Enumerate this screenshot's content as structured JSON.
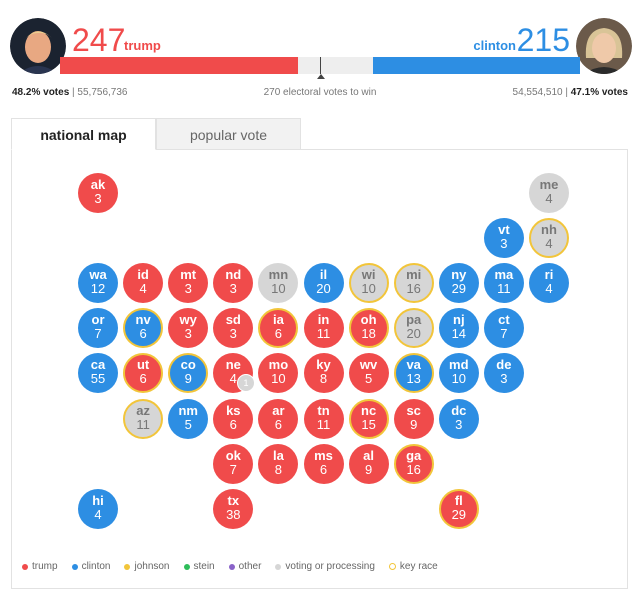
{
  "colors": {
    "trump": "#f04b4b",
    "clinton": "#2d8ee3",
    "johnson": "#f2c53a",
    "stein": "#2ebd5a",
    "other": "#8a63c9",
    "processing": "#d6d6d6",
    "key_race": "#f2c53a"
  },
  "header": {
    "trump": {
      "electoral_votes": "247",
      "name": "trump",
      "pct": "48.2% votes",
      "popular": "55,756,736",
      "bar_fraction": 0.4575
    },
    "clinton": {
      "electoral_votes": "215",
      "name": "clinton",
      "pct": "47.1% votes",
      "popular": "54,554,510",
      "bar_fraction": 0.3981
    },
    "win_text": "270 electoral votes to win"
  },
  "tabs": [
    {
      "label": "national map",
      "active": true
    },
    {
      "label": "popular vote",
      "active": false
    }
  ],
  "states": [
    {
      "code": "ak",
      "ev": "3",
      "party": "trump",
      "key": false
    },
    {
      "code": "me",
      "ev": "4",
      "party": "processing",
      "key": false
    },
    {
      "code": "vt",
      "ev": "3",
      "party": "clinton",
      "key": false
    },
    {
      "code": "nh",
      "ev": "4",
      "party": "processing",
      "key": true
    },
    {
      "code": "wa",
      "ev": "12",
      "party": "clinton",
      "key": false
    },
    {
      "code": "id",
      "ev": "4",
      "party": "trump",
      "key": false
    },
    {
      "code": "mt",
      "ev": "3",
      "party": "trump",
      "key": false
    },
    {
      "code": "nd",
      "ev": "3",
      "party": "trump",
      "key": false
    },
    {
      "code": "mn",
      "ev": "10",
      "party": "processing",
      "key": false
    },
    {
      "code": "il",
      "ev": "20",
      "party": "clinton",
      "key": false
    },
    {
      "code": "wi",
      "ev": "10",
      "party": "processing",
      "key": true
    },
    {
      "code": "mi",
      "ev": "16",
      "party": "processing",
      "key": true
    },
    {
      "code": "ny",
      "ev": "29",
      "party": "clinton",
      "key": false
    },
    {
      "code": "ma",
      "ev": "11",
      "party": "clinton",
      "key": false
    },
    {
      "code": "ri",
      "ev": "4",
      "party": "clinton",
      "key": false
    },
    {
      "code": "or",
      "ev": "7",
      "party": "clinton",
      "key": false
    },
    {
      "code": "nv",
      "ev": "6",
      "party": "clinton",
      "key": true
    },
    {
      "code": "wy",
      "ev": "3",
      "party": "trump",
      "key": false
    },
    {
      "code": "sd",
      "ev": "3",
      "party": "trump",
      "key": false
    },
    {
      "code": "ia",
      "ev": "6",
      "party": "trump",
      "key": true
    },
    {
      "code": "in",
      "ev": "11",
      "party": "trump",
      "key": false
    },
    {
      "code": "oh",
      "ev": "18",
      "party": "trump",
      "key": true
    },
    {
      "code": "pa",
      "ev": "20",
      "party": "processing",
      "key": true
    },
    {
      "code": "nj",
      "ev": "14",
      "party": "clinton",
      "key": false
    },
    {
      "code": "ct",
      "ev": "7",
      "party": "clinton",
      "key": false
    },
    {
      "code": "ca",
      "ev": "55",
      "party": "clinton",
      "key": false
    },
    {
      "code": "ut",
      "ev": "6",
      "party": "trump",
      "key": true
    },
    {
      "code": "co",
      "ev": "9",
      "party": "clinton",
      "key": true
    },
    {
      "code": "ne",
      "ev": "4",
      "party": "trump",
      "key": false
    },
    {
      "code": "mo",
      "ev": "10",
      "party": "trump",
      "key": false
    },
    {
      "code": "ky",
      "ev": "8",
      "party": "trump",
      "key": false
    },
    {
      "code": "wv",
      "ev": "5",
      "party": "trump",
      "key": false
    },
    {
      "code": "va",
      "ev": "13",
      "party": "clinton",
      "key": true
    },
    {
      "code": "md",
      "ev": "10",
      "party": "clinton",
      "key": false
    },
    {
      "code": "de",
      "ev": "3",
      "party": "clinton",
      "key": false
    },
    {
      "code": "az",
      "ev": "11",
      "party": "processing",
      "key": true
    },
    {
      "code": "nm",
      "ev": "5",
      "party": "clinton",
      "key": false
    },
    {
      "code": "ks",
      "ev": "6",
      "party": "trump",
      "key": false
    },
    {
      "code": "ar",
      "ev": "6",
      "party": "trump",
      "key": false
    },
    {
      "code": "tn",
      "ev": "11",
      "party": "trump",
      "key": false
    },
    {
      "code": "nc",
      "ev": "15",
      "party": "trump",
      "key": true
    },
    {
      "code": "sc",
      "ev": "9",
      "party": "trump",
      "key": false
    },
    {
      "code": "dc",
      "ev": "3",
      "party": "clinton",
      "key": false
    },
    {
      "code": "ok",
      "ev": "7",
      "party": "trump",
      "key": false
    },
    {
      "code": "la",
      "ev": "8",
      "party": "trump",
      "key": false
    },
    {
      "code": "ms",
      "ev": "6",
      "party": "trump",
      "key": false
    },
    {
      "code": "al",
      "ev": "9",
      "party": "trump",
      "key": false
    },
    {
      "code": "ga",
      "ev": "16",
      "party": "trump",
      "key": true
    },
    {
      "code": "hi",
      "ev": "4",
      "party": "clinton",
      "key": false
    },
    {
      "code": "tx",
      "ev": "38",
      "party": "trump",
      "key": false
    },
    {
      "code": "fl",
      "ev": "29",
      "party": "trump",
      "key": true
    }
  ],
  "ne_badge": "1",
  "legend": [
    {
      "label": "trump",
      "color": "#f04b4b",
      "ring": false
    },
    {
      "label": "clinton",
      "color": "#2d8ee3",
      "ring": false
    },
    {
      "label": "johnson",
      "color": "#f2c53a",
      "ring": false
    },
    {
      "label": "stein",
      "color": "#2ebd5a",
      "ring": false
    },
    {
      "label": "other",
      "color": "#8a63c9",
      "ring": false
    },
    {
      "label": "voting or processing",
      "color": "#d6d6d6",
      "ring": false
    },
    {
      "label": "key race",
      "color": "#f2c53a",
      "ring": true
    }
  ]
}
